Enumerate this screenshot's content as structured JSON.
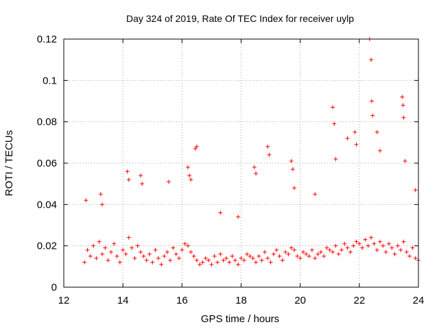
{
  "chart_data": {
    "type": "scatter",
    "title": "Day 324 of 2019, Rate Of TEC Index for receiver uylp",
    "xlabel": "GPS time / hours",
    "ylabel": "ROTI / TECUs",
    "xlim": [
      12,
      24
    ],
    "ylim": [
      0,
      0.12
    ],
    "xticks": [
      12,
      14,
      16,
      18,
      20,
      22,
      24
    ],
    "yticks": [
      0,
      0.02,
      0.04,
      0.06,
      0.08,
      0.1,
      0.12
    ],
    "grid": true,
    "marker": "+",
    "color": "#ff0000",
    "series": [
      {
        "name": "ROTI",
        "x": [
          12.7,
          12.8,
          12.9,
          13.0,
          13.1,
          13.2,
          13.3,
          13.4,
          13.5,
          13.6,
          13.7,
          13.8,
          13.9,
          14.0,
          14.1,
          14.2,
          14.3,
          14.4,
          14.5,
          14.6,
          14.7,
          14.8,
          14.9,
          15.0,
          15.1,
          15.2,
          15.3,
          15.4,
          15.5,
          15.6,
          15.7,
          15.8,
          15.9,
          16.0,
          16.1,
          16.2,
          16.3,
          16.4,
          16.5,
          16.6,
          16.7,
          16.8,
          16.9,
          17.0,
          17.1,
          17.2,
          17.3,
          17.4,
          17.5,
          17.6,
          17.7,
          17.8,
          17.9,
          18.0,
          18.1,
          18.2,
          18.3,
          18.4,
          18.5,
          18.6,
          18.7,
          18.8,
          18.9,
          19.0,
          19.1,
          19.2,
          19.3,
          19.4,
          19.5,
          19.6,
          19.7,
          19.8,
          19.9,
          20.0,
          20.1,
          20.2,
          20.3,
          20.4,
          20.5,
          20.6,
          20.7,
          20.8,
          20.9,
          21.0,
          21.1,
          21.2,
          21.3,
          21.4,
          21.5,
          21.6,
          21.7,
          21.8,
          21.9,
          22.0,
          22.1,
          22.2,
          22.3,
          22.4,
          22.5,
          22.6,
          22.7,
          22.8,
          22.9,
          23.0,
          23.1,
          23.2,
          23.3,
          23.4,
          23.5,
          23.6,
          23.7,
          23.8,
          23.9,
          24.0,
          12.75,
          13.25,
          13.3,
          14.15,
          14.2,
          14.6,
          14.65,
          15.55,
          16.2,
          16.25,
          16.3,
          16.45,
          16.5,
          17.3,
          17.9,
          18.45,
          18.5,
          18.9,
          18.95,
          19.7,
          19.75,
          19.8,
          20.5,
          21.1,
          21.15,
          21.2,
          21.6,
          21.85,
          21.9,
          22.35,
          22.4,
          22.42,
          22.45,
          22.6,
          22.7,
          23.45,
          23.48,
          23.5,
          23.55,
          23.9
        ],
        "y": [
          0.012,
          0.018,
          0.015,
          0.02,
          0.014,
          0.022,
          0.016,
          0.019,
          0.013,
          0.017,
          0.021,
          0.015,
          0.012,
          0.018,
          0.016,
          0.024,
          0.019,
          0.014,
          0.02,
          0.017,
          0.015,
          0.013,
          0.016,
          0.012,
          0.018,
          0.014,
          0.011,
          0.015,
          0.017,
          0.013,
          0.019,
          0.016,
          0.014,
          0.018,
          0.021,
          0.02,
          0.017,
          0.015,
          0.013,
          0.011,
          0.012,
          0.014,
          0.013,
          0.011,
          0.015,
          0.012,
          0.016,
          0.013,
          0.014,
          0.012,
          0.015,
          0.013,
          0.011,
          0.014,
          0.013,
          0.016,
          0.015,
          0.014,
          0.012,
          0.015,
          0.013,
          0.017,
          0.014,
          0.012,
          0.016,
          0.018,
          0.015,
          0.013,
          0.017,
          0.016,
          0.019,
          0.018,
          0.015,
          0.014,
          0.017,
          0.016,
          0.015,
          0.018,
          0.014,
          0.016,
          0.017,
          0.015,
          0.019,
          0.018,
          0.017,
          0.02,
          0.016,
          0.018,
          0.021,
          0.019,
          0.017,
          0.02,
          0.022,
          0.021,
          0.019,
          0.023,
          0.02,
          0.024,
          0.021,
          0.018,
          0.022,
          0.02,
          0.017,
          0.021,
          0.019,
          0.016,
          0.02,
          0.018,
          0.022,
          0.017,
          0.015,
          0.019,
          0.014,
          0.013,
          0.042,
          0.045,
          0.04,
          0.056,
          0.052,
          0.054,
          0.05,
          0.051,
          0.058,
          0.054,
          0.052,
          0.067,
          0.068,
          0.036,
          0.034,
          0.058,
          0.055,
          0.068,
          0.064,
          0.061,
          0.057,
          0.048,
          0.045,
          0.087,
          0.079,
          0.062,
          0.072,
          0.075,
          0.069,
          0.12,
          0.11,
          0.09,
          0.083,
          0.075,
          0.066,
          0.092,
          0.088,
          0.082,
          0.061,
          0.047
        ]
      }
    ]
  }
}
